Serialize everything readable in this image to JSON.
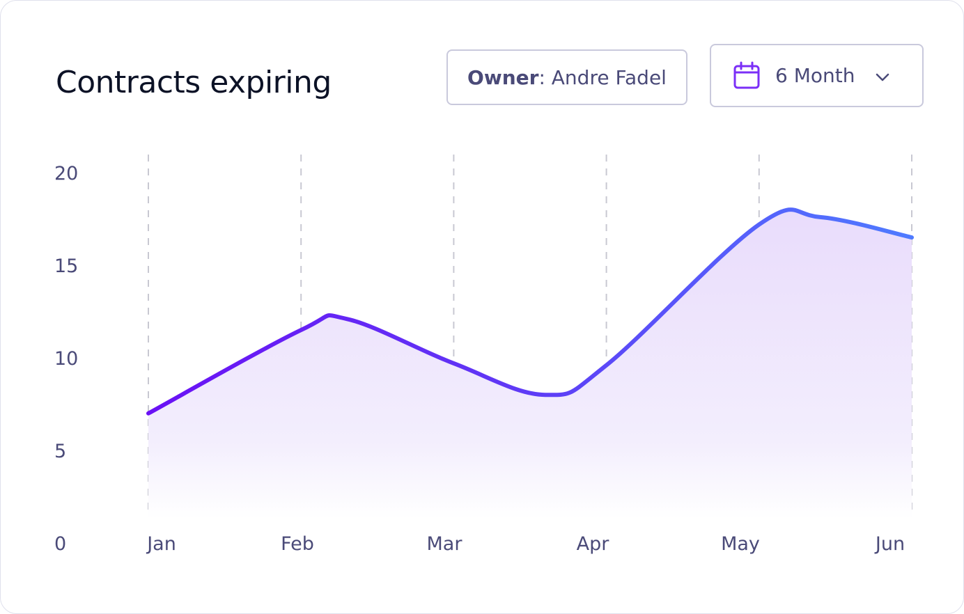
{
  "header": {
    "title": "Contracts expiring",
    "owner_key": "Owner",
    "owner_sep": ": ",
    "owner_value": "Andre Fadel",
    "period_label": "6 Month",
    "period_icon": "calendar-icon",
    "dropdown_icon": "chevron-down-icon"
  },
  "colors": {
    "line_start": "#6a11f5",
    "line_end": "#4f7bff",
    "area_fill": "#ede4fd",
    "grid": "#c8c8d2",
    "axis_text": "#4a4a78",
    "title": "#0c1226"
  },
  "chart_data": {
    "type": "area",
    "title": "Contracts expiring",
    "categories": [
      "Jan",
      "Feb",
      "Mar",
      "Apr",
      "May",
      "Jun"
    ],
    "x": [
      0,
      1,
      1.3,
      2,
      2.6,
      3,
      4,
      4.4,
      5
    ],
    "y": [
      7.0,
      11.5,
      12.1,
      9.7,
      8.0,
      9.6,
      17.2,
      17.6,
      16.5
    ],
    "yticks": [
      0,
      5,
      10,
      15,
      20
    ],
    "ylim": [
      0,
      20
    ],
    "xlabel": "",
    "ylabel": "",
    "grid": "vertical-dashed",
    "legend": "none"
  }
}
